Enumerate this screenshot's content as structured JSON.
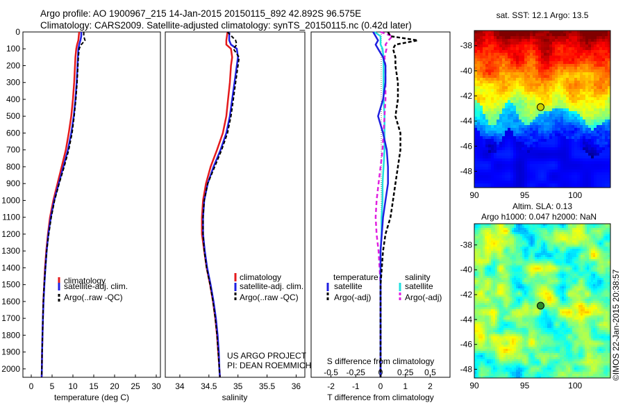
{
  "header": {
    "line1": "Argo profile: AO 1900967_215 14-Jan-2015 20150115_892 42.892S 96.575E",
    "line2": "Climatology: CARS2009. Satellite-adjusted climatology: synTS_20150115.nc (0.42d later)"
  },
  "colors": {
    "climatology": "#e41a1c",
    "satellite": "#1f1fe0",
    "argo": "#000000",
    "cyan": "#22e0e0",
    "magenta": "#e020e0"
  },
  "chart_data": [
    {
      "id": "temperature",
      "type": "line",
      "xlabel": "temperature (deg C)",
      "ylabel": "",
      "xlim": [
        -2,
        31
      ],
      "ylim": [
        2050,
        0
      ],
      "xticks": [
        "0",
        "5",
        "10",
        "15",
        "20",
        "25",
        "30"
      ],
      "yticks": [
        "0",
        "100",
        "200",
        "300",
        "400",
        "500",
        "600",
        "700",
        "800",
        "900",
        "1000",
        "1100",
        "1200",
        "1300",
        "1400",
        "1500",
        "1600",
        "1700",
        "1800",
        "1900",
        "2000"
      ],
      "depth": [
        0,
        25,
        50,
        75,
        100,
        150,
        200,
        300,
        400,
        500,
        600,
        700,
        800,
        900,
        1000,
        1100,
        1200,
        1300,
        1400,
        1500,
        1600,
        1700,
        1800,
        1900,
        2000,
        2050
      ],
      "series": [
        {
          "name": "climatology",
          "values": [
            11.5,
            11.4,
            11.3,
            11.0,
            10.8,
            10.6,
            10.5,
            10.3,
            10.0,
            9.6,
            9.0,
            8.3,
            7.3,
            6.3,
            5.3,
            4.5,
            4.0,
            3.6,
            3.3,
            3.1,
            2.9,
            2.8,
            2.7,
            2.6,
            2.55,
            2.5
          ]
        },
        {
          "name": "satellite-adj. clim.",
          "values": [
            12.0,
            12.0,
            11.8,
            11.5,
            11.3,
            11.2,
            11.1,
            10.9,
            10.6,
            10.2,
            9.6,
            8.8,
            7.7,
            6.6,
            5.5,
            4.7,
            4.1,
            3.7,
            3.4,
            3.15,
            2.95,
            2.8,
            2.7,
            2.6,
            2.55,
            2.5
          ]
        },
        {
          "name": "Argo(..raw -QC)",
          "values": [
            12.6,
            12.6,
            12.9,
            12.0,
            11.5,
            11.3,
            11.2,
            11.0,
            10.7,
            10.3,
            9.8,
            9.0,
            7.9,
            6.7,
            5.6,
            4.8,
            4.2,
            3.7,
            3.4,
            3.1,
            2.9,
            2.8,
            2.7,
            2.6,
            2.55,
            2.5
          ]
        }
      ],
      "legend": [
        "climatology",
        "satellite-adj. clim.",
        "Argo(..raw -QC)"
      ]
    },
    {
      "id": "salinity",
      "type": "line",
      "xlabel": "salinity",
      "xlim": [
        33.75,
        36.15
      ],
      "ylim": [
        2050,
        0
      ],
      "xticks": [
        "34",
        "34.5",
        "35",
        "35.5",
        "36"
      ],
      "depth": [
        0,
        50,
        75,
        100,
        150,
        200,
        300,
        400,
        500,
        600,
        700,
        800,
        900,
        1000,
        1100,
        1200,
        1300,
        1400,
        1500,
        1600,
        1700,
        1800,
        1900,
        2000,
        2050
      ],
      "series": [
        {
          "name": "climatology",
          "values": [
            34.82,
            34.8,
            34.8,
            34.88,
            34.9,
            34.88,
            34.86,
            34.83,
            34.8,
            34.74,
            34.64,
            34.53,
            34.45,
            34.4,
            34.38,
            34.38,
            34.42,
            34.46,
            34.52,
            34.57,
            34.61,
            34.64,
            34.66,
            34.68,
            34.69
          ]
        },
        {
          "name": "satellite-adj. clim.",
          "values": [
            34.85,
            34.85,
            34.88,
            34.98,
            35.0,
            34.98,
            34.94,
            34.9,
            34.86,
            34.8,
            34.7,
            34.58,
            34.48,
            34.42,
            34.4,
            34.4,
            34.43,
            34.47,
            34.53,
            34.58,
            34.62,
            34.65,
            34.67,
            34.68,
            34.69
          ]
        },
        {
          "name": "Argo(..raw -QC)",
          "values": [
            34.82,
            34.96,
            34.98,
            34.92,
            35.02,
            35.0,
            34.96,
            34.92,
            34.88,
            34.82,
            34.72,
            34.6,
            34.48,
            34.42,
            34.4,
            34.4,
            34.42,
            34.46,
            34.52,
            34.57,
            34.61,
            34.64,
            34.66,
            34.68,
            34.69
          ]
        }
      ],
      "legend": [
        "climatology",
        "satellite-adj. clim.",
        "Argo(..raw -QC)"
      ],
      "notes": [
        "US ARGO PROJECT",
        "PI: DEAN ROEMMICH"
      ]
    },
    {
      "id": "difference",
      "type": "line",
      "xlabel": "T difference from climatology",
      "xlabel_top": "S difference from climatology",
      "xlim": [
        -2.8,
        2.8
      ],
      "ylim": [
        2050,
        0
      ],
      "xticks": [
        "-2",
        "-1",
        "0",
        "1",
        "2"
      ],
      "xticks_s": [
        "-0.5",
        "-0.25",
        "0",
        "0.25",
        "0.5"
      ],
      "depth": [
        0,
        25,
        50,
        75,
        100,
        150,
        200,
        300,
        400,
        500,
        600,
        700,
        800,
        900,
        1000,
        1100,
        1200,
        1300,
        1400,
        1500,
        1600,
        1700,
        1800,
        1900,
        2000,
        2050
      ],
      "series": [
        {
          "name": "temperature satellite",
          "values": [
            -0.3,
            -0.2,
            -0.1,
            -0.2,
            -0.1,
            0.1,
            0.2,
            0.2,
            0.1,
            -0.1,
            0.1,
            0.25,
            0.3,
            0.3,
            0.2,
            0.1,
            0.05,
            0.0,
            0.0,
            0.0,
            0.0,
            0.0,
            0.0,
            0.0,
            0.0,
            0.0
          ]
        },
        {
          "name": "temperature Argo(-adj)",
          "values": [
            0.3,
            0.4,
            1.5,
            0.6,
            0.5,
            0.6,
            0.6,
            0.7,
            0.7,
            0.6,
            0.8,
            0.8,
            0.7,
            0.6,
            0.5,
            0.4,
            0.2,
            0.1,
            0.05,
            0.0,
            0.0,
            0.0,
            0.0,
            0.0,
            0.0,
            0.0
          ]
        },
        {
          "name": "salinity satellite",
          "values": [
            -0.06,
            0.0,
            0.0,
            0.0,
            0.02,
            0.03,
            0.03,
            0.03,
            0.03,
            0.04,
            0.04,
            0.04,
            0.03,
            0.02,
            0.02,
            0.01,
            0.01,
            0.0,
            0.0,
            0.0,
            0.0,
            0.0,
            0.0,
            0.0,
            0.0,
            0.0
          ]
        },
        {
          "name": "salinity Argo(-adj)",
          "values": [
            0.0,
            0.12,
            0.08,
            0.05,
            0.06,
            0.04,
            0.05,
            0.05,
            0.05,
            0.04,
            0.03,
            0.02,
            0.0,
            -0.02,
            -0.04,
            -0.05,
            -0.04,
            -0.02,
            -0.01,
            0.0,
            0.0,
            0.0,
            0.0,
            0.0,
            0.0,
            0.0
          ]
        }
      ],
      "legend": {
        "temperature": {
          "title": "temperature",
          "items": [
            "satellite",
            "Argo(-adj)"
          ]
        },
        "salinity": {
          "title": "salinity",
          "items": [
            "satellite",
            "Argo(-adj)"
          ]
        }
      }
    },
    {
      "id": "sst-map",
      "type": "heatmap",
      "title": "sat. SST: 12.1  Argo: 13.5",
      "xlim": [
        90,
        103.5
      ],
      "ylim": [
        -49.3,
        -36.8
      ],
      "xticks": [
        "90",
        "95",
        "100"
      ],
      "yticks": [
        "-38",
        "-40",
        "-42",
        "-44",
        "-46",
        "-48"
      ],
      "marker": {
        "lon": 96.575,
        "lat": -42.892
      }
    },
    {
      "id": "sla-map",
      "type": "heatmap",
      "title_line1": "Altim. SLA: 0.13",
      "title_line2": "Argo h1000: 0.047 h2000: NaN",
      "xlim": [
        90,
        103.5
      ],
      "ylim": [
        -48.7,
        -36.3
      ],
      "xticks": [
        "90",
        "95",
        "100"
      ],
      "yticks": [
        "-38",
        "-40",
        "-42",
        "-44",
        "-46",
        "-48"
      ],
      "marker": {
        "lon": 96.575,
        "lat": -42.892
      }
    }
  ],
  "footer": {
    "credit": "©IMOS 22-Jan-2015 20:38:57"
  }
}
